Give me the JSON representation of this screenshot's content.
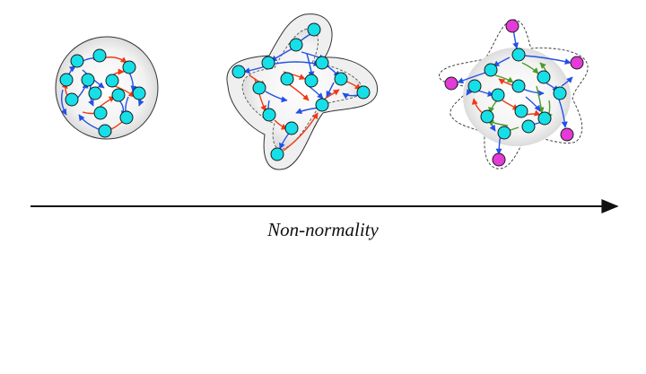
{
  "axis": {
    "label": "Non-normality"
  },
  "colors": {
    "node_fill": "#16dfe8",
    "leader_fill": "#e43bd8",
    "node_stroke": "#1a1a1a",
    "edge_blue": "#2350e6",
    "edge_red": "#ee3a14",
    "edge_green": "#4e9a2a",
    "halo": "#e6e6e6",
    "axis": "#111111"
  },
  "networks": [
    {
      "name": "network-normal",
      "node_count": 13,
      "leader_count": 0
    },
    {
      "name": "network-non-normal",
      "node_count": 14,
      "leader_count": 0
    },
    {
      "name": "network-highly-non-normal",
      "node_count": 13,
      "leader_count": 5
    }
  ]
}
